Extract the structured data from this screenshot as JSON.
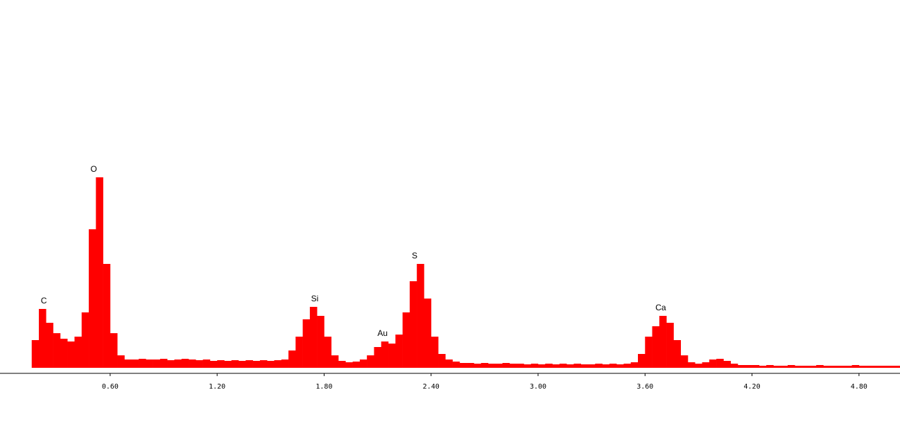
{
  "chart_data": {
    "type": "bar",
    "color": "#ff0000",
    "xlim": [
      0,
      5.03
    ],
    "ylim": [
      0,
      300
    ],
    "bar_width": 0.04,
    "xticks": [
      {
        "value": 0.6,
        "label": "0.60"
      },
      {
        "value": 1.2,
        "label": "1.20"
      },
      {
        "value": 1.8,
        "label": "1.80"
      },
      {
        "value": 2.4,
        "label": "2.40"
      },
      {
        "value": 3.0,
        "label": "3.00"
      },
      {
        "value": 3.6,
        "label": "3.60"
      },
      {
        "value": 4.2,
        "label": "4.20"
      },
      {
        "value": 4.8,
        "label": "4.80"
      }
    ],
    "x": [
      0.16,
      0.2,
      0.24,
      0.28,
      0.32,
      0.36,
      0.4,
      0.44,
      0.48,
      0.52,
      0.56,
      0.6,
      0.64,
      0.68,
      0.72,
      0.76,
      0.8,
      0.84,
      0.88,
      0.92,
      0.96,
      1.0,
      1.04,
      1.08,
      1.12,
      1.16,
      1.2,
      1.24,
      1.28,
      1.32,
      1.36,
      1.4,
      1.44,
      1.48,
      1.52,
      1.56,
      1.6,
      1.64,
      1.68,
      1.72,
      1.76,
      1.8,
      1.84,
      1.88,
      1.92,
      1.96,
      2.0,
      2.04,
      2.08,
      2.12,
      2.16,
      2.2,
      2.24,
      2.28,
      2.32,
      2.36,
      2.4,
      2.44,
      2.48,
      2.52,
      2.56,
      2.6,
      2.64,
      2.68,
      2.72,
      2.76,
      2.8,
      2.84,
      2.88,
      2.92,
      2.96,
      3.0,
      3.04,
      3.08,
      3.12,
      3.16,
      3.2,
      3.24,
      3.28,
      3.32,
      3.36,
      3.4,
      3.44,
      3.48,
      3.52,
      3.56,
      3.6,
      3.64,
      3.68,
      3.72,
      3.76,
      3.8,
      3.84,
      3.88,
      3.92,
      3.96,
      4.0,
      4.04,
      4.08,
      4.12,
      4.16,
      4.2,
      4.24,
      4.28,
      4.32,
      4.36,
      4.4,
      4.44,
      4.48,
      4.52,
      4.56,
      4.6,
      4.64,
      4.68,
      4.72,
      4.76,
      4.8,
      4.84,
      4.88,
      4.92,
      4.96,
      5.0
    ],
    "values": [
      40,
      85,
      65,
      50,
      42,
      38,
      45,
      80,
      200,
      275,
      150,
      50,
      18,
      12,
      12,
      13,
      12,
      12,
      13,
      11,
      12,
      13,
      12,
      11,
      12,
      10,
      11,
      10,
      11,
      10,
      11,
      10,
      11,
      10,
      11,
      12,
      25,
      45,
      70,
      88,
      75,
      45,
      18,
      10,
      8,
      9,
      12,
      18,
      30,
      38,
      35,
      48,
      80,
      125,
      150,
      100,
      45,
      20,
      12,
      9,
      7,
      7,
      6,
      7,
      6,
      6,
      7,
      6,
      6,
      5,
      6,
      5,
      6,
      5,
      6,
      5,
      6,
      5,
      5,
      6,
      5,
      6,
      5,
      6,
      8,
      20,
      45,
      60,
      75,
      65,
      40,
      18,
      8,
      6,
      8,
      12,
      13,
      10,
      6,
      4,
      4,
      4,
      3,
      4,
      3,
      3,
      4,
      3,
      3,
      3,
      4,
      3,
      3,
      3,
      3,
      4,
      3,
      3,
      3,
      3,
      3,
      3
    ],
    "annotations": [
      {
        "text": "C",
        "x": 0.22
      },
      {
        "text": "O",
        "x": 0.5
      },
      {
        "text": "Si",
        "x": 1.74
      },
      {
        "text": "Au",
        "x": 2.12
      },
      {
        "text": "S",
        "x": 2.3
      },
      {
        "text": "Ca",
        "x": 3.68
      }
    ]
  }
}
